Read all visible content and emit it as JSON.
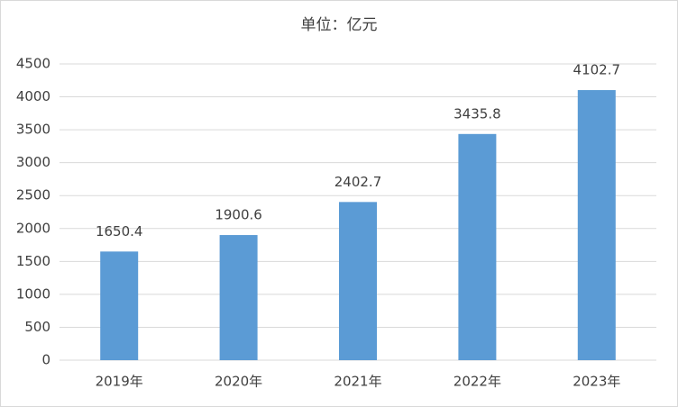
{
  "chart_data": {
    "type": "bar",
    "title": "单位：亿元",
    "categories": [
      "2019年",
      "2020年",
      "2021年",
      "2022年",
      "2023年"
    ],
    "values": [
      1650.4,
      1900.6,
      2402.7,
      3435.8,
      4102.7
    ],
    "color": "#5b9bd5",
    "ylim": [
      0,
      4500
    ],
    "yticks": [
      0,
      500,
      1000,
      1500,
      2000,
      2500,
      3000,
      3500,
      4000,
      4500
    ],
    "grid": true,
    "value_labels_shown": true
  }
}
